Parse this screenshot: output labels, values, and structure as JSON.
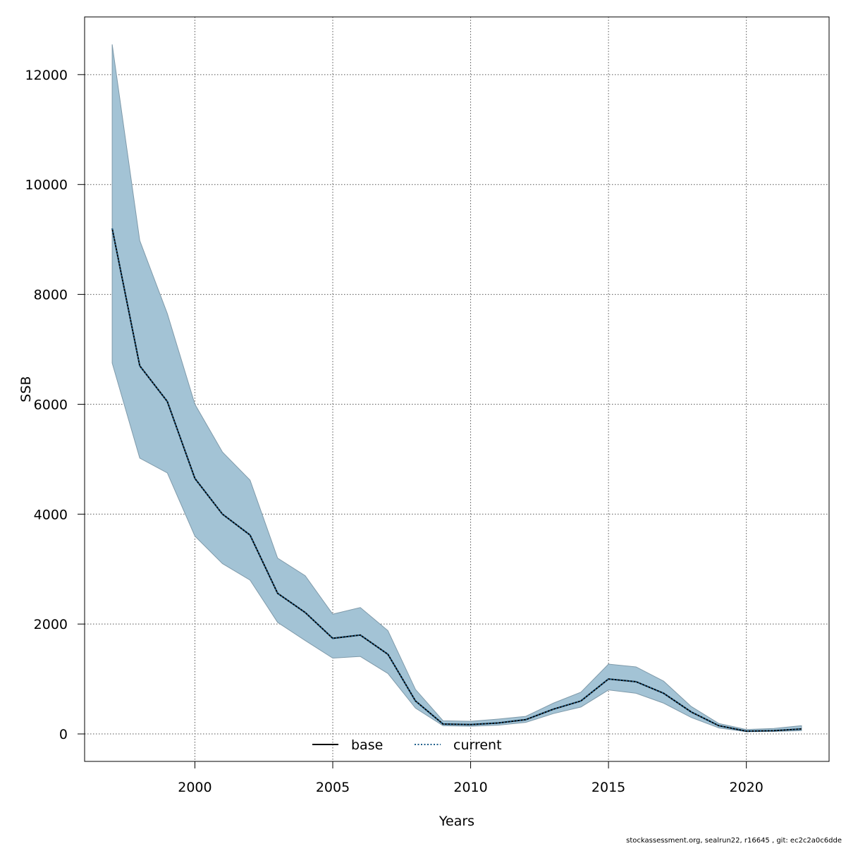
{
  "chart_data": {
    "type": "area",
    "title": "",
    "xlabel": "Years",
    "ylabel": "SSB",
    "xlim": [
      1996,
      2023
    ],
    "ylim": [
      -500,
      13050
    ],
    "x_ticks": [
      2000,
      2005,
      2010,
      2015,
      2020
    ],
    "x_tick_labels": [
      "2000",
      "2005",
      "2010",
      "2015",
      "2020"
    ],
    "y_ticks": [
      0,
      2000,
      4000,
      6000,
      8000,
      10000,
      12000
    ],
    "y_tick_labels": [
      "0",
      "2000",
      "4000",
      "6000",
      "8000",
      "10000",
      "12000"
    ],
    "grid": true,
    "legend": {
      "placement": "bottom-center",
      "entries": [
        "base",
        "current"
      ]
    },
    "x": [
      1997,
      1998,
      1999,
      2000,
      2001,
      2002,
      2003,
      2004,
      2005,
      2006,
      2007,
      2008,
      2009,
      2010,
      2011,
      2012,
      2013,
      2014,
      2015,
      2016,
      2017,
      2018,
      2019,
      2020,
      2021,
      2022
    ],
    "series": [
      {
        "name": "base",
        "style": "solid",
        "color": "#000000",
        "values": [
          9200,
          6700,
          6050,
          4650,
          4000,
          3620,
          2560,
          2210,
          1740,
          1800,
          1450,
          600,
          180,
          170,
          200,
          260,
          450,
          600,
          1000,
          950,
          740,
          400,
          150,
          50,
          60,
          90
        ]
      },
      {
        "name": "current",
        "style": "dotted",
        "color": "#1f5f8b",
        "values": [
          9200,
          6700,
          6050,
          4650,
          4000,
          3620,
          2560,
          2210,
          1740,
          1800,
          1450,
          600,
          180,
          170,
          200,
          260,
          450,
          600,
          1000,
          950,
          740,
          400,
          150,
          50,
          60,
          90
        ]
      }
    ],
    "band": {
      "fill": "#a3c3d5",
      "stroke": "#7f9aaa",
      "lower": [
        6750,
        5020,
        4750,
        3600,
        3100,
        2800,
        2030,
        1700,
        1380,
        1410,
        1100,
        470,
        150,
        140,
        160,
        210,
        370,
        490,
        800,
        740,
        560,
        300,
        110,
        40,
        45,
        60
      ],
      "upper": [
        12550,
        8980,
        7650,
        6000,
        5130,
        4620,
        3200,
        2880,
        2180,
        2300,
        1880,
        810,
        240,
        230,
        270,
        320,
        560,
        760,
        1270,
        1220,
        960,
        500,
        190,
        80,
        100,
        150
      ]
    }
  },
  "footer": "stockassessment.org, sealrun22, r16645 , git: ec2c2a0c6dde"
}
